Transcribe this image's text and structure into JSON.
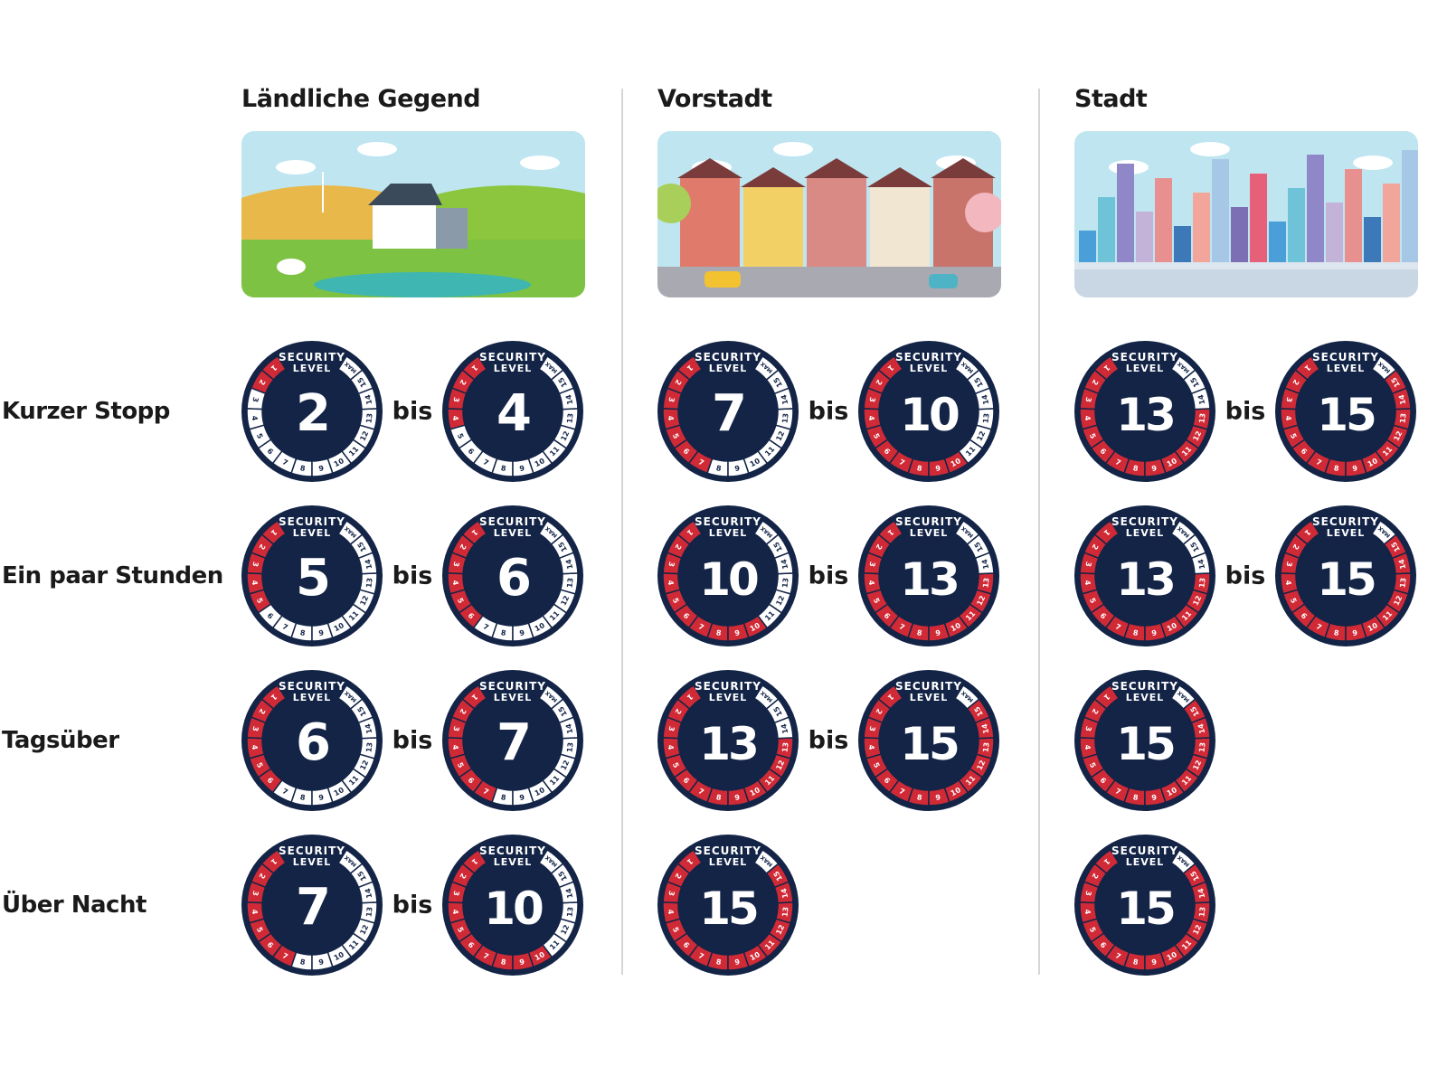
{
  "columns": [
    {
      "title": "Ländliche Gegend",
      "scene": "rural"
    },
    {
      "title": "Vorstadt",
      "scene": "suburb"
    },
    {
      "title": "Stadt",
      "scene": "city"
    }
  ],
  "connector": "bis",
  "badge": {
    "top_line1": "SECURITY",
    "top_line2": "LEVEL",
    "max_label": "MAX",
    "scale": [
      1,
      2,
      3,
      4,
      5,
      6,
      7,
      8,
      9,
      10,
      11,
      12,
      13,
      14,
      15
    ],
    "colors": {
      "navy": "#132447",
      "red": "#d02a36",
      "white": "#ffffff"
    }
  },
  "rows": [
    {
      "label": "Kurzer Stopp",
      "cells": [
        {
          "from": 2,
          "to": 4
        },
        {
          "from": 7,
          "to": 10
        },
        {
          "from": 13,
          "to": 15
        }
      ]
    },
    {
      "label": "Ein paar Stunden",
      "cells": [
        {
          "from": 5,
          "to": 6
        },
        {
          "from": 10,
          "to": 13
        },
        {
          "from": 13,
          "to": 15
        }
      ]
    },
    {
      "label": "Tagsüber",
      "cells": [
        {
          "from": 6,
          "to": 7
        },
        {
          "from": 13,
          "to": 15
        },
        {
          "level": 15
        }
      ]
    },
    {
      "label": "Über Nacht",
      "cells": [
        {
          "from": 7,
          "to": 10
        },
        {
          "level": 15
        },
        {
          "level": 15
        }
      ]
    }
  ]
}
